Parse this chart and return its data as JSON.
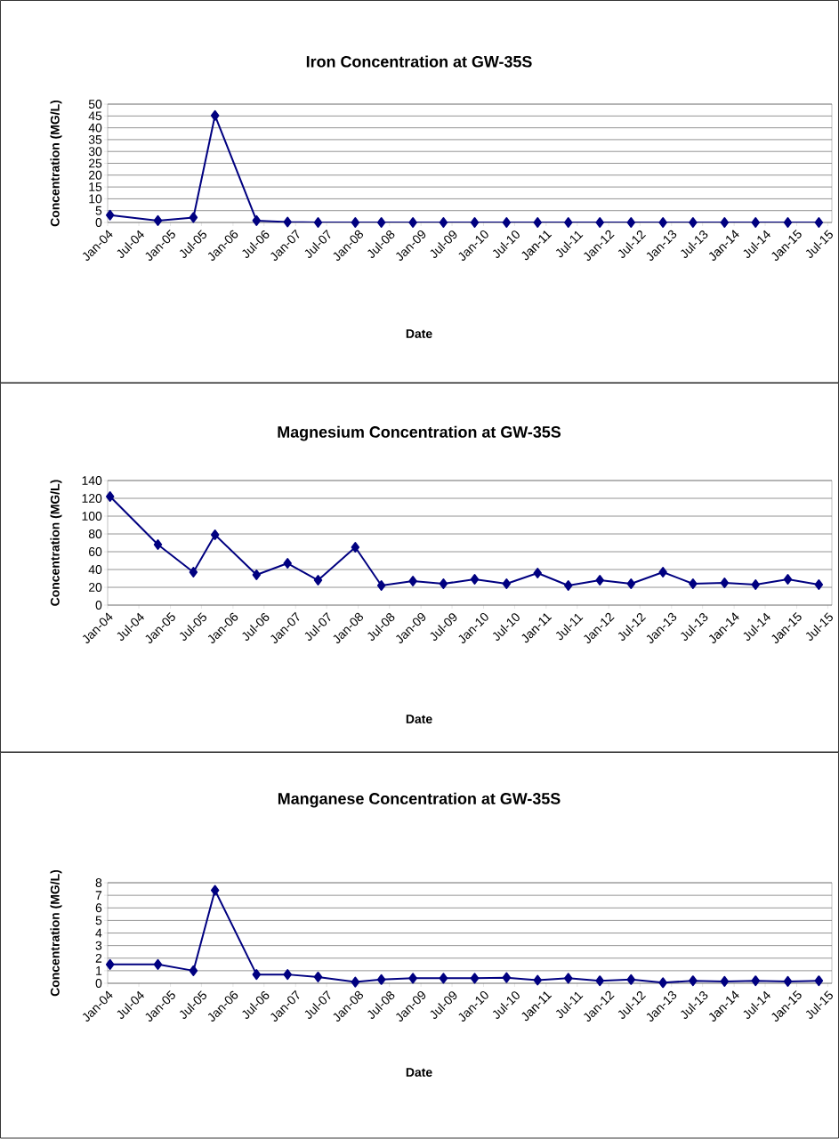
{
  "chart_data": [
    {
      "type": "line",
      "title": "Iron Concentration at GW-35S",
      "xlabel": "Date",
      "ylabel": "Concentration (MG/L)",
      "x": [
        "2004-01-15",
        "2004-10-20",
        "2005-05-15",
        "2005-09-18",
        "2006-05-18",
        "2006-11-15",
        "2007-05-12",
        "2007-12-15",
        "2008-05-15",
        "2008-11-15",
        "2009-05-12",
        "2009-11-10",
        "2010-05-15",
        "2010-11-12",
        "2011-05-10",
        "2011-11-10",
        "2012-05-10",
        "2012-11-12",
        "2013-05-06",
        "2013-11-06",
        "2014-05-06",
        "2014-11-10",
        "2015-05-10"
      ],
      "values": [
        3.1,
        0.8,
        2.1,
        45.2,
        0.8,
        0.2,
        0,
        0,
        0,
        0,
        0,
        0,
        0,
        0,
        0,
        0,
        0,
        0,
        0,
        0,
        0,
        0,
        0
      ],
      "color": "#000080",
      "marker": "diamond",
      "line_style": "solid",
      "grid": "y",
      "xlim": [
        "2004-01-01",
        "2015-07-25"
      ],
      "xticks": [
        {
          "value": "2004-01-01",
          "label": "Jan-04"
        },
        {
          "value": "2004-07-01",
          "label": "Jul-04"
        },
        {
          "value": "2005-01-01",
          "label": "Jan-05"
        },
        {
          "value": "2005-07-01",
          "label": "Jul-05"
        },
        {
          "value": "2006-01-01",
          "label": "Jan-06"
        },
        {
          "value": "2006-07-01",
          "label": "Jul-06"
        },
        {
          "value": "2007-01-01",
          "label": "Jan-07"
        },
        {
          "value": "2007-07-01",
          "label": "Jul-07"
        },
        {
          "value": "2008-01-01",
          "label": "Jan-08"
        },
        {
          "value": "2008-07-01",
          "label": "Jul-08"
        },
        {
          "value": "2009-01-01",
          "label": "Jan-09"
        },
        {
          "value": "2009-07-01",
          "label": "Jul-09"
        },
        {
          "value": "2010-01-01",
          "label": "Jan-10"
        },
        {
          "value": "2010-07-01",
          "label": "Jul-10"
        },
        {
          "value": "2011-01-01",
          "label": "Jan-11"
        },
        {
          "value": "2011-07-01",
          "label": "Jul-11"
        },
        {
          "value": "2012-01-01",
          "label": "Jan-12"
        },
        {
          "value": "2012-07-01",
          "label": "Jul-12"
        },
        {
          "value": "2013-01-01",
          "label": "Jan-13"
        },
        {
          "value": "2013-07-01",
          "label": "Jul-13"
        },
        {
          "value": "2014-01-01",
          "label": "Jan-14"
        },
        {
          "value": "2014-07-01",
          "label": "Jul-14"
        },
        {
          "value": "2015-01-01",
          "label": "Jan-15"
        },
        {
          "value": "2015-07-01",
          "label": "Jul-15"
        }
      ],
      "ylim": [
        0,
        50
      ],
      "yticks": [
        0,
        5,
        10,
        15,
        20,
        25,
        30,
        35,
        40,
        45,
        50
      ]
    },
    {
      "type": "line",
      "title": "Magnesium Concentration at GW-35S",
      "xlabel": "Date",
      "ylabel": "Concentration (MG/L)",
      "x": [
        "2004-01-15",
        "2004-10-20",
        "2005-05-15",
        "2005-09-18",
        "2006-05-18",
        "2006-11-15",
        "2007-05-12",
        "2007-12-15",
        "2008-05-15",
        "2008-11-15",
        "2009-05-12",
        "2009-11-10",
        "2010-05-15",
        "2010-11-12",
        "2011-05-10",
        "2011-11-10",
        "2012-05-10",
        "2012-11-12",
        "2013-05-06",
        "2013-11-06",
        "2014-05-06",
        "2014-11-10",
        "2015-05-10"
      ],
      "values": [
        122,
        68,
        37,
        79,
        34,
        47,
        28,
        65,
        22,
        27,
        24,
        29,
        24,
        36,
        22,
        28,
        24,
        37,
        24,
        25,
        23,
        29,
        23
      ],
      "color": "#000080",
      "marker": "diamond",
      "line_style": "solid",
      "grid": "y",
      "xlim": [
        "2004-01-01",
        "2015-07-25"
      ],
      "xticks": [
        {
          "value": "2004-01-01",
          "label": "Jan-04"
        },
        {
          "value": "2004-07-01",
          "label": "Jul-04"
        },
        {
          "value": "2005-01-01",
          "label": "Jan-05"
        },
        {
          "value": "2005-07-01",
          "label": "Jul-05"
        },
        {
          "value": "2006-01-01",
          "label": "Jan-06"
        },
        {
          "value": "2006-07-01",
          "label": "Jul-06"
        },
        {
          "value": "2007-01-01",
          "label": "Jan-07"
        },
        {
          "value": "2007-07-01",
          "label": "Jul-07"
        },
        {
          "value": "2008-01-01",
          "label": "Jan-08"
        },
        {
          "value": "2008-07-01",
          "label": "Jul-08"
        },
        {
          "value": "2009-01-01",
          "label": "Jan-09"
        },
        {
          "value": "2009-07-01",
          "label": "Jul-09"
        },
        {
          "value": "2010-01-01",
          "label": "Jan-10"
        },
        {
          "value": "2010-07-01",
          "label": "Jul-10"
        },
        {
          "value": "2011-01-01",
          "label": "Jan-11"
        },
        {
          "value": "2011-07-01",
          "label": "Jul-11"
        },
        {
          "value": "2012-01-01",
          "label": "Jan-12"
        },
        {
          "value": "2012-07-01",
          "label": "Jul-12"
        },
        {
          "value": "2013-01-01",
          "label": "Jan-13"
        },
        {
          "value": "2013-07-01",
          "label": "Jul-13"
        },
        {
          "value": "2014-01-01",
          "label": "Jan-14"
        },
        {
          "value": "2014-07-01",
          "label": "Jul-14"
        },
        {
          "value": "2015-01-01",
          "label": "Jan-15"
        },
        {
          "value": "2015-07-01",
          "label": "Jul-15"
        }
      ],
      "ylim": [
        0,
        140
      ],
      "yticks": [
        0,
        20,
        40,
        60,
        80,
        100,
        120,
        140
      ]
    },
    {
      "type": "line",
      "title": "Manganese Concentration at GW-35S",
      "xlabel": "Date",
      "ylabel": "Concentration (MG/L)",
      "x": [
        "2004-01-15",
        "2004-10-20",
        "2005-05-15",
        "2005-09-18",
        "2006-05-18",
        "2006-11-15",
        "2007-05-12",
        "2007-12-15",
        "2008-05-15",
        "2008-11-15",
        "2009-05-12",
        "2009-11-10",
        "2010-05-15",
        "2010-11-12",
        "2011-05-10",
        "2011-11-10",
        "2012-05-10",
        "2012-11-12",
        "2013-05-06",
        "2013-11-06",
        "2014-05-06",
        "2014-11-10",
        "2015-05-10"
      ],
      "values": [
        1.5,
        1.5,
        1.0,
        7.4,
        0.7,
        0.7,
        0.5,
        0.1,
        0.3,
        0.4,
        0.4,
        0.4,
        0.45,
        0.25,
        0.4,
        0.2,
        0.3,
        0.05,
        0.2,
        0.15,
        0.2,
        0.15,
        0.2
      ],
      "color": "#000080",
      "marker": "diamond",
      "line_style": "solid",
      "grid": "y",
      "xlim": [
        "2004-01-01",
        "2015-07-25"
      ],
      "xticks": [
        {
          "value": "2004-01-01",
          "label": "Jan-04"
        },
        {
          "value": "2004-07-01",
          "label": "Jul-04"
        },
        {
          "value": "2005-01-01",
          "label": "Jan-05"
        },
        {
          "value": "2005-07-01",
          "label": "Jul-05"
        },
        {
          "value": "2006-01-01",
          "label": "Jan-06"
        },
        {
          "value": "2006-07-01",
          "label": "Jul-06"
        },
        {
          "value": "2007-01-01",
          "label": "Jan-07"
        },
        {
          "value": "2007-07-01",
          "label": "Jul-07"
        },
        {
          "value": "2008-01-01",
          "label": "Jan-08"
        },
        {
          "value": "2008-07-01",
          "label": "Jul-08"
        },
        {
          "value": "2009-01-01",
          "label": "Jan-09"
        },
        {
          "value": "2009-07-01",
          "label": "Jul-09"
        },
        {
          "value": "2010-01-01",
          "label": "Jan-10"
        },
        {
          "value": "2010-07-01",
          "label": "Jul-10"
        },
        {
          "value": "2011-01-01",
          "label": "Jan-11"
        },
        {
          "value": "2011-07-01",
          "label": "Jul-11"
        },
        {
          "value": "2012-01-01",
          "label": "Jan-12"
        },
        {
          "value": "2012-07-01",
          "label": "Jul-12"
        },
        {
          "value": "2013-01-01",
          "label": "Jan-13"
        },
        {
          "value": "2013-07-01",
          "label": "Jul-13"
        },
        {
          "value": "2014-01-01",
          "label": "Jan-14"
        },
        {
          "value": "2014-07-01",
          "label": "Jul-14"
        },
        {
          "value": "2015-01-01",
          "label": "Jan-15"
        },
        {
          "value": "2015-07-01",
          "label": "Jul-15"
        }
      ],
      "ylim": [
        0,
        8
      ],
      "yticks": [
        0,
        1,
        2,
        3,
        4,
        5,
        6,
        7,
        8
      ]
    }
  ]
}
